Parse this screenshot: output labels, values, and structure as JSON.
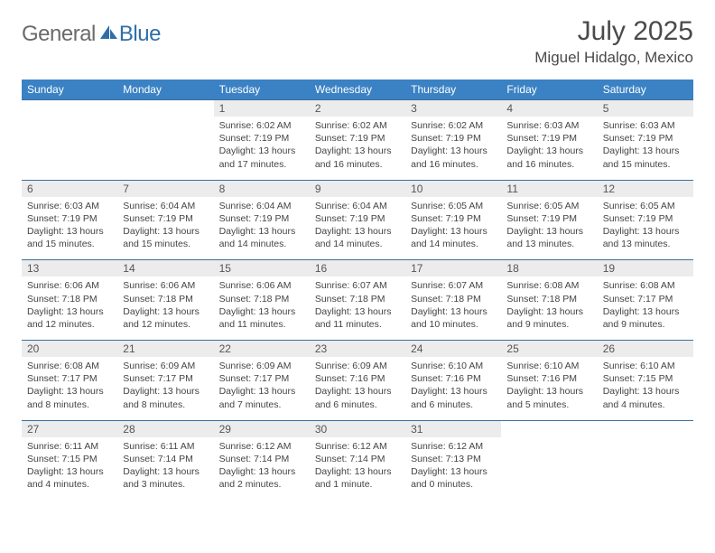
{
  "brand": {
    "text1": "General",
    "text2": "Blue",
    "text1_color": "#6a6a6a",
    "text2_color": "#2f6fa8",
    "icon_color": "#2f6fa8"
  },
  "title": "July 2025",
  "location": "Miguel Hidalgo, Mexico",
  "colors": {
    "header_bg": "#3b82c4",
    "header_text": "#ffffff",
    "daynum_bg": "#ececec",
    "week_border": "#3b6fa0",
    "body_text": "#444444",
    "page_bg": "#ffffff"
  },
  "day_names": [
    "Sunday",
    "Monday",
    "Tuesday",
    "Wednesday",
    "Thursday",
    "Friday",
    "Saturday"
  ],
  "weeks": [
    [
      null,
      null,
      {
        "n": "1",
        "sunrise": "6:02 AM",
        "sunset": "7:19 PM",
        "day_h": "13",
        "day_m": "17"
      },
      {
        "n": "2",
        "sunrise": "6:02 AM",
        "sunset": "7:19 PM",
        "day_h": "13",
        "day_m": "16"
      },
      {
        "n": "3",
        "sunrise": "6:02 AM",
        "sunset": "7:19 PM",
        "day_h": "13",
        "day_m": "16"
      },
      {
        "n": "4",
        "sunrise": "6:03 AM",
        "sunset": "7:19 PM",
        "day_h": "13",
        "day_m": "16"
      },
      {
        "n": "5",
        "sunrise": "6:03 AM",
        "sunset": "7:19 PM",
        "day_h": "13",
        "day_m": "15"
      }
    ],
    [
      {
        "n": "6",
        "sunrise": "6:03 AM",
        "sunset": "7:19 PM",
        "day_h": "13",
        "day_m": "15"
      },
      {
        "n": "7",
        "sunrise": "6:04 AM",
        "sunset": "7:19 PM",
        "day_h": "13",
        "day_m": "15"
      },
      {
        "n": "8",
        "sunrise": "6:04 AM",
        "sunset": "7:19 PM",
        "day_h": "13",
        "day_m": "14"
      },
      {
        "n": "9",
        "sunrise": "6:04 AM",
        "sunset": "7:19 PM",
        "day_h": "13",
        "day_m": "14"
      },
      {
        "n": "10",
        "sunrise": "6:05 AM",
        "sunset": "7:19 PM",
        "day_h": "13",
        "day_m": "14"
      },
      {
        "n": "11",
        "sunrise": "6:05 AM",
        "sunset": "7:19 PM",
        "day_h": "13",
        "day_m": "13"
      },
      {
        "n": "12",
        "sunrise": "6:05 AM",
        "sunset": "7:19 PM",
        "day_h": "13",
        "day_m": "13"
      }
    ],
    [
      {
        "n": "13",
        "sunrise": "6:06 AM",
        "sunset": "7:18 PM",
        "day_h": "13",
        "day_m": "12"
      },
      {
        "n": "14",
        "sunrise": "6:06 AM",
        "sunset": "7:18 PM",
        "day_h": "13",
        "day_m": "12"
      },
      {
        "n": "15",
        "sunrise": "6:06 AM",
        "sunset": "7:18 PM",
        "day_h": "13",
        "day_m": "11"
      },
      {
        "n": "16",
        "sunrise": "6:07 AM",
        "sunset": "7:18 PM",
        "day_h": "13",
        "day_m": "11"
      },
      {
        "n": "17",
        "sunrise": "6:07 AM",
        "sunset": "7:18 PM",
        "day_h": "13",
        "day_m": "10"
      },
      {
        "n": "18",
        "sunrise": "6:08 AM",
        "sunset": "7:18 PM",
        "day_h": "13",
        "day_m": "9"
      },
      {
        "n": "19",
        "sunrise": "6:08 AM",
        "sunset": "7:17 PM",
        "day_h": "13",
        "day_m": "9"
      }
    ],
    [
      {
        "n": "20",
        "sunrise": "6:08 AM",
        "sunset": "7:17 PM",
        "day_h": "13",
        "day_m": "8"
      },
      {
        "n": "21",
        "sunrise": "6:09 AM",
        "sunset": "7:17 PM",
        "day_h": "13",
        "day_m": "8"
      },
      {
        "n": "22",
        "sunrise": "6:09 AM",
        "sunset": "7:17 PM",
        "day_h": "13",
        "day_m": "7"
      },
      {
        "n": "23",
        "sunrise": "6:09 AM",
        "sunset": "7:16 PM",
        "day_h": "13",
        "day_m": "6"
      },
      {
        "n": "24",
        "sunrise": "6:10 AM",
        "sunset": "7:16 PM",
        "day_h": "13",
        "day_m": "6"
      },
      {
        "n": "25",
        "sunrise": "6:10 AM",
        "sunset": "7:16 PM",
        "day_h": "13",
        "day_m": "5"
      },
      {
        "n": "26",
        "sunrise": "6:10 AM",
        "sunset": "7:15 PM",
        "day_h": "13",
        "day_m": "4"
      }
    ],
    [
      {
        "n": "27",
        "sunrise": "6:11 AM",
        "sunset": "7:15 PM",
        "day_h": "13",
        "day_m": "4"
      },
      {
        "n": "28",
        "sunrise": "6:11 AM",
        "sunset": "7:14 PM",
        "day_h": "13",
        "day_m": "3"
      },
      {
        "n": "29",
        "sunrise": "6:12 AM",
        "sunset": "7:14 PM",
        "day_h": "13",
        "day_m": "2"
      },
      {
        "n": "30",
        "sunrise": "6:12 AM",
        "sunset": "7:14 PM",
        "day_h": "13",
        "day_m": "1"
      },
      {
        "n": "31",
        "sunrise": "6:12 AM",
        "sunset": "7:13 PM",
        "day_h": "13",
        "day_m": "0"
      },
      null,
      null
    ]
  ],
  "labels": {
    "sunrise_prefix": "Sunrise: ",
    "sunset_prefix": "Sunset: ",
    "daylight_prefix": "Daylight: ",
    "hours_word": " hours",
    "and_word": "and ",
    "minutes_word_plural": " minutes.",
    "minutes_word_singular": " minute."
  }
}
